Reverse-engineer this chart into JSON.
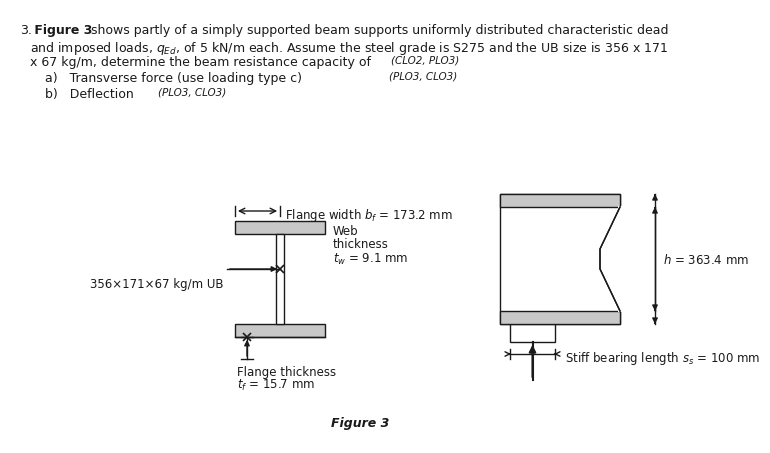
{
  "title_text": "Figure 3",
  "flange_width_label": "Flange width $b_f$ = 173.2 mm",
  "web_thickness_label1": "Web",
  "web_thickness_label2": "thickness",
  "web_thickness_label3": "$t_w$ = 9.1 mm",
  "height_label": "$h$ = 363.4 mm",
  "flange_thickness_label1": "Flange thickness",
  "flange_thickness_label2": "$t_f$ = 15.7 mm",
  "stiff_bearing_label": "Stiff bearing length $s_s$ = 100 mm",
  "ub_label": "356×171×67 kg/m UB",
  "bg_color": "#ffffff",
  "line_color": "#1a1a1a",
  "text_color": "#1a1a1a",
  "gray_fill": "#c8c8c8",
  "gray_dark": "#a0a0a0"
}
